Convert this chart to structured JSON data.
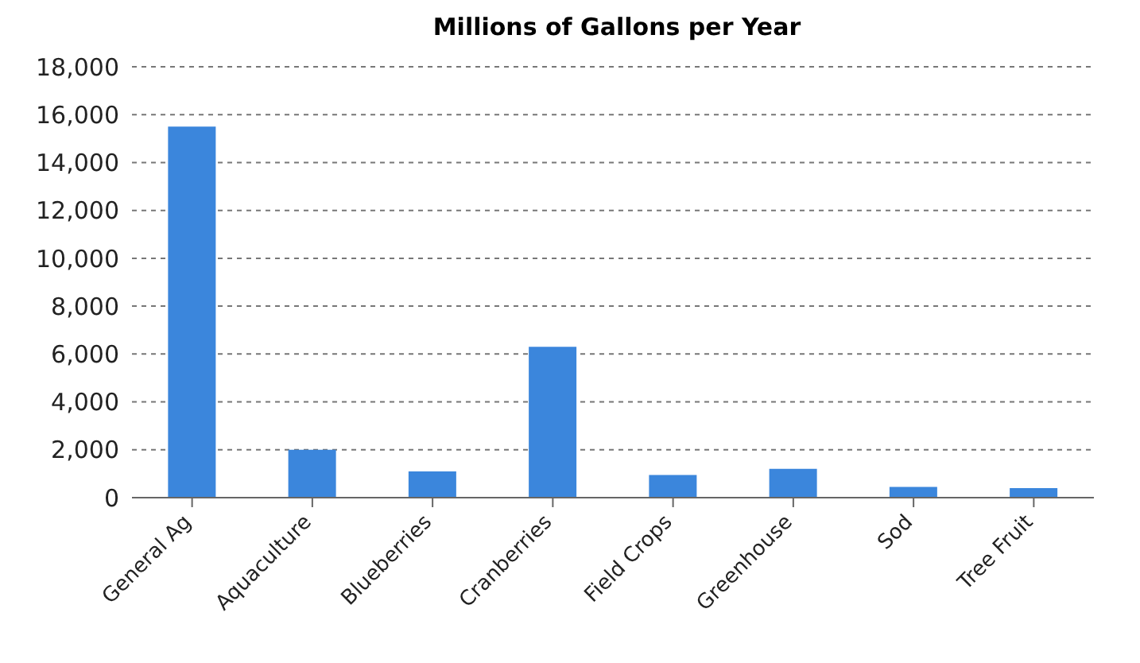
{
  "chart_data": {
    "type": "bar",
    "title": "Millions of Gallons per Year",
    "categories": [
      "General Ag",
      "Aquaculture",
      "Blueberries",
      "Cranberries",
      "Field Crops",
      "Greenhouse",
      "Sod",
      "Tree Fruit"
    ],
    "values": [
      15500,
      2000,
      1100,
      6300,
      950,
      1200,
      450,
      400
    ],
    "color": "#3b86dc",
    "ylim": [
      0,
      18000
    ],
    "yticks": [
      0,
      {
        "value": 2000,
        "label": "2,000"
      },
      {
        "value": 4000,
        "label": "4,000"
      },
      {
        "value": 6000,
        "label": "6,000"
      },
      {
        "value": 8000,
        "label": "8,000"
      },
      {
        "value": 10000,
        "label": "10,000"
      },
      {
        "value": 12000,
        "label": "12,000"
      },
      {
        "value": 14000,
        "label": "14,000"
      },
      {
        "value": 16000,
        "label": "16,000"
      },
      {
        "value": 18000,
        "label": "18,000"
      }
    ],
    "grid": "y"
  }
}
